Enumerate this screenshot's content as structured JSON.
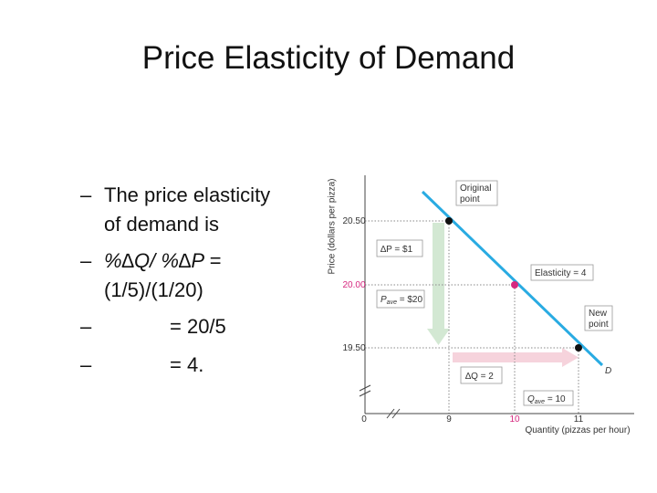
{
  "slide": {
    "title": "Price Elasticity of Demand",
    "bullets": [
      {
        "marker": "–",
        "lines": [
          "The price elasticity",
          "of demand is"
        ]
      },
      {
        "marker": "–",
        "lines": [
          "%∆Q/ %∆P =",
          "(1/5)/(1/20)"
        ]
      },
      {
        "marker": "–",
        "lines": [
          "= 20/5"
        ]
      },
      {
        "marker": "–",
        "lines": [
          "= 4."
        ]
      }
    ],
    "figure": {
      "y_axis_title": "Price (dollars per pizza)",
      "x_axis_title": "Quantity (pizzas per hour)",
      "y_ticks": [
        "20.50",
        "20.00",
        "19.50"
      ],
      "origin": "0",
      "x_ticks": [
        "9",
        "10",
        "11"
      ],
      "original_point": [
        "Original",
        "point"
      ],
      "new_point": [
        "New",
        "point"
      ],
      "delta_p": "∆P = $1",
      "p_ave": {
        "symbol": "P",
        "sub": "ave",
        "text": " = $20"
      },
      "elasticity": "Elasticity = 4",
      "delta_q": "∆Q = 2",
      "q_ave": {
        "symbol": "Q",
        "sub": "ave",
        "text": " = 10"
      },
      "curve_label": "D"
    }
  }
}
